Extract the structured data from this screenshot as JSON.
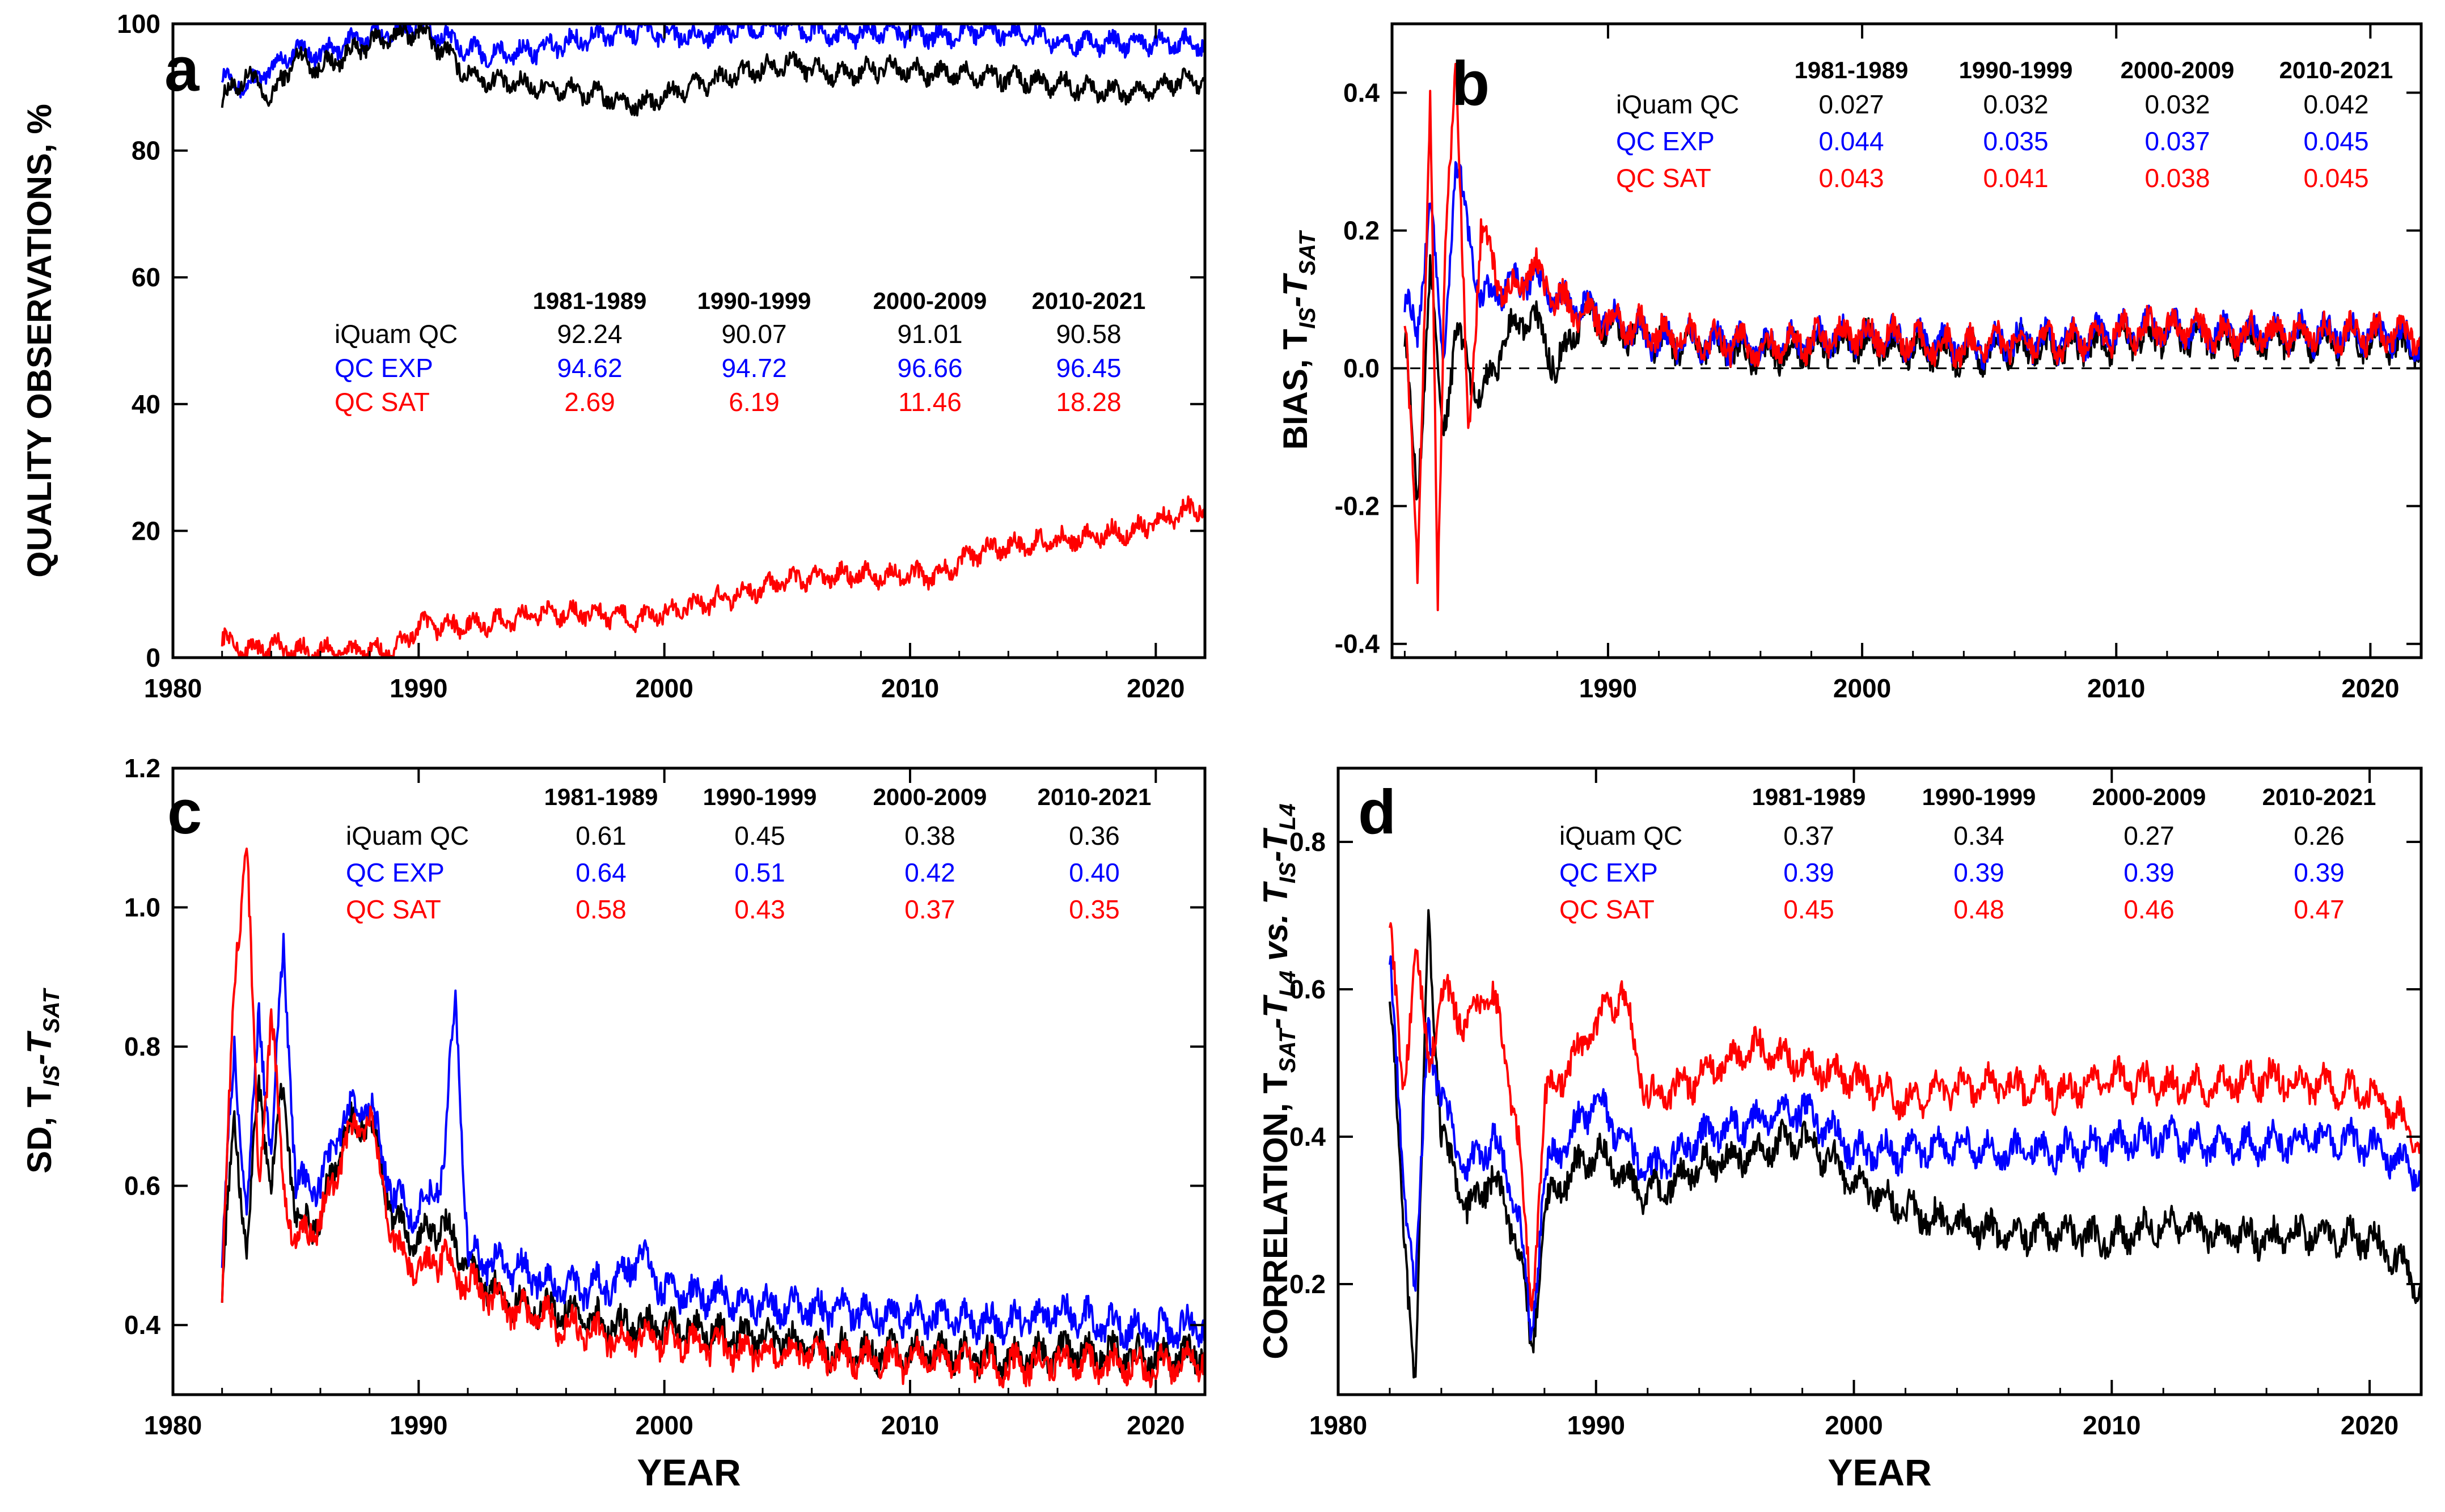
{
  "colors": {
    "iquam": "#000000",
    "exp": "#0000ff",
    "sat": "#ff0000"
  },
  "chart_data": [
    {
      "type": "line",
      "panel_label": "a",
      "ylabel": "QUALITY OBSERVATIONS, %",
      "xlabel": "",
      "xlim": [
        1980,
        2022
      ],
      "ylim": [
        0,
        100
      ],
      "x_ticks": [
        "1980",
        "1990",
        "2000",
        "2010",
        "2020"
      ],
      "y_ticks": [
        "0",
        "20",
        "40",
        "60",
        "80",
        "100"
      ],
      "table": {
        "headers": [
          "1981-1989",
          "1990-1999",
          "2000-2009",
          "2010-2021"
        ],
        "rows": [
          {
            "label": "iQuam QC",
            "values": [
              "92.24",
              "90.07",
              "91.01",
              "90.58"
            ]
          },
          {
            "label": "QC EXP",
            "values": [
              "94.62",
              "94.72",
              "96.66",
              "96.45"
            ]
          },
          {
            "label": "QC SAT",
            "values": [
              "2.69",
              "6.19",
              "11.46",
              "18.28"
            ]
          }
        ]
      },
      "series": [
        {
          "name": "iQuam QC",
          "x": [
            1982,
            1983,
            1984,
            1985,
            1986,
            1987,
            1988,
            1989,
            1990,
            1991,
            1992,
            1993,
            1995,
            1997,
            1999,
            2001,
            2003,
            2005,
            2007,
            2009,
            2011,
            2013,
            2015,
            2017,
            2019,
            2021,
            2022
          ],
          "y": [
            88,
            92,
            88,
            95,
            93,
            95,
            97,
            98,
            99,
            96,
            92,
            91,
            90,
            89,
            87,
            90,
            92,
            94,
            92,
            93,
            92,
            92,
            91,
            90,
            89,
            91,
            91
          ]
        },
        {
          "name": "QC EXP",
          "x": [
            1982,
            1983,
            1984,
            1985,
            1986,
            1987,
            1988,
            1989,
            1990,
            1991,
            1992,
            1993,
            1995,
            1997,
            1999,
            2001,
            2003,
            2005,
            2007,
            2009,
            2011,
            2013,
            2015,
            2017,
            2019,
            2021,
            2022
          ],
          "y": [
            92,
            90,
            93,
            96,
            95,
            97,
            98,
            99,
            100,
            98,
            96,
            95,
            96,
            98,
            99,
            98,
            99,
            100,
            98,
            99,
            98,
            99,
            98,
            97,
            97,
            97,
            97
          ]
        },
        {
          "name": "QC SAT",
          "x": [
            1982,
            1983,
            1984,
            1985,
            1986,
            1987,
            1988,
            1989,
            1990,
            1992,
            1994,
            1995,
            1997,
            1999,
            2001,
            2003,
            2005,
            2007,
            2009,
            2011,
            2013,
            2015,
            2017,
            2019,
            2021,
            2022
          ],
          "y": [
            3,
            1,
            2,
            1,
            1,
            1,
            1,
            1,
            5,
            5,
            6,
            7,
            7,
            6,
            8,
            10,
            12,
            13,
            13,
            13,
            17,
            18,
            19,
            20,
            23,
            24
          ]
        }
      ]
    },
    {
      "type": "line",
      "panel_label": "b",
      "ylabel": "BIAS, T_IS-T_SAT",
      "ylabel_parts": [
        "BIAS, T",
        "IS",
        "-T",
        "SAT"
      ],
      "xlabel": "",
      "xlim": [
        1981.5,
        2022
      ],
      "ylim": [
        -0.42,
        0.5
      ],
      "x_ticks": [
        "1990",
        "2000",
        "2010",
        "2020"
      ],
      "y_ticks": [
        "-0.4",
        "-0.2",
        "0.0",
        "0.2",
        "0.4"
      ],
      "table": {
        "headers": [
          "1981-1989",
          "1990-1999",
          "2000-2009",
          "2010-2021"
        ],
        "rows": [
          {
            "label": "iQuam QC",
            "values": [
              "0.027",
              "0.032",
              "0.032",
              "0.042"
            ]
          },
          {
            "label": "QC EXP",
            "values": [
              "0.044",
              "0.035",
              "0.037",
              "0.045"
            ]
          },
          {
            "label": "QC SAT",
            "values": [
              "0.043",
              "0.041",
              "0.038",
              "0.045"
            ]
          }
        ]
      },
      "series": [
        {
          "name": "iQuam QC",
          "x": [
            1982,
            1982.5,
            1983,
            1983.5,
            1984,
            1985,
            1986,
            1987,
            1988,
            1989,
            1990,
            1992,
            1994,
            1996,
            1998,
            2000,
            2002,
            2004,
            2006,
            2008,
            2010,
            2012,
            2014,
            2016,
            2018,
            2020,
            2022
          ],
          "y": [
            0.05,
            -0.2,
            0.15,
            -0.1,
            0.05,
            -0.05,
            0.05,
            0.08,
            0.0,
            0.08,
            0.06,
            0.04,
            0.03,
            0.02,
            0.03,
            0.04,
            0.03,
            0.02,
            0.03,
            0.03,
            0.04,
            0.05,
            0.04,
            0.04,
            0.04,
            0.04,
            0.03
          ]
        },
        {
          "name": "QC EXP",
          "x": [
            1982,
            1982.5,
            1983,
            1983.5,
            1984,
            1985,
            1986,
            1987,
            1988,
            1989,
            1990,
            1992,
            1994,
            1996,
            1998,
            2000,
            2002,
            2004,
            2006,
            2008,
            2010,
            2012,
            2014,
            2016,
            2018,
            2020,
            2022
          ],
          "y": [
            0.1,
            0.05,
            0.25,
            0.0,
            0.3,
            0.1,
            0.12,
            0.13,
            0.1,
            0.09,
            0.07,
            0.04,
            0.04,
            0.03,
            0.04,
            0.05,
            0.04,
            0.03,
            0.04,
            0.04,
            0.05,
            0.06,
            0.05,
            0.05,
            0.05,
            0.05,
            0.04
          ]
        },
        {
          "name": "QC SAT",
          "x": [
            1982,
            1982.5,
            1983,
            1983.3,
            1983.6,
            1984,
            1984.5,
            1985,
            1986,
            1987,
            1988,
            1989,
            1990,
            1992,
            1994,
            1996,
            1998,
            2000,
            2002,
            2004,
            2006,
            2008,
            2010,
            2012,
            2014,
            2016,
            2018,
            2020,
            2022
          ],
          "y": [
            0.08,
            -0.3,
            0.4,
            -0.35,
            0.2,
            0.45,
            -0.1,
            0.2,
            0.1,
            0.15,
            0.1,
            0.08,
            0.07,
            0.05,
            0.04,
            0.03,
            0.04,
            0.05,
            0.04,
            0.03,
            0.04,
            0.04,
            0.05,
            0.06,
            0.05,
            0.05,
            0.05,
            0.05,
            0.05
          ]
        }
      ]
    },
    {
      "type": "line",
      "panel_label": "c",
      "ylabel": "SD, T_IS-T_SAT",
      "ylabel_parts": [
        "SD, T",
        "IS",
        "-T",
        "SAT"
      ],
      "xlabel": "YEAR",
      "xlim": [
        1980,
        2022
      ],
      "ylim": [
        0.3,
        1.2
      ],
      "x_ticks": [
        "1980",
        "1990",
        "2000",
        "2010",
        "2020"
      ],
      "y_ticks": [
        "0.4",
        "0.6",
        "0.8",
        "1.0",
        "1.2"
      ],
      "table": {
        "headers": [
          "1981-1989",
          "1990-1999",
          "2000-2009",
          "2010-2021"
        ],
        "rows": [
          {
            "label": "iQuam QC",
            "values": [
              "0.61",
              "0.45",
              "0.38",
              "0.36"
            ]
          },
          {
            "label": "QC EXP",
            "values": [
              "0.64",
              "0.51",
              "0.42",
              "0.40"
            ]
          },
          {
            "label": "QC SAT",
            "values": [
              "0.58",
              "0.43",
              "0.37",
              "0.35"
            ]
          }
        ]
      },
      "series": [
        {
          "name": "iQuam QC",
          "x": [
            1982,
            1982.5,
            1983,
            1983.5,
            1984,
            1984.5,
            1985,
            1986,
            1987,
            1988,
            1989,
            1990,
            1991,
            1992,
            1994,
            1996,
            1998,
            2000,
            2002,
            2004,
            2006,
            2008,
            2010,
            2012,
            2014,
            2016,
            2018,
            2020,
            2022
          ],
          "y": [
            0.45,
            0.7,
            0.5,
            0.75,
            0.6,
            0.75,
            0.55,
            0.55,
            0.68,
            0.7,
            0.55,
            0.52,
            0.55,
            0.48,
            0.43,
            0.42,
            0.4,
            0.4,
            0.39,
            0.38,
            0.37,
            0.36,
            0.36,
            0.36,
            0.35,
            0.36,
            0.36,
            0.35,
            0.36
          ]
        },
        {
          "name": "QC EXP",
          "x": [
            1982,
            1982.5,
            1983,
            1983.5,
            1984,
            1984.5,
            1985,
            1986,
            1987,
            1988,
            1989,
            1990,
            1991,
            1991.5,
            1992,
            1994,
            1996,
            1998,
            1999,
            2000,
            2002,
            2004,
            2006,
            2008,
            2010,
            2012,
            2014,
            2016,
            2018,
            2020,
            2022
          ],
          "y": [
            0.5,
            0.8,
            0.55,
            0.85,
            0.65,
            0.95,
            0.6,
            0.6,
            0.7,
            0.72,
            0.58,
            0.56,
            0.62,
            0.88,
            0.5,
            0.48,
            0.45,
            0.46,
            0.5,
            0.45,
            0.44,
            0.43,
            0.42,
            0.42,
            0.41,
            0.41,
            0.4,
            0.42,
            0.4,
            0.39,
            0.4
          ]
        },
        {
          "name": "QC SAT",
          "x": [
            1982,
            1982.5,
            1983,
            1983.5,
            1984,
            1984.5,
            1985,
            1986,
            1987,
            1988,
            1989,
            1990,
            1991,
            1992,
            1994,
            1996,
            1998,
            2000,
            2002,
            2004,
            2006,
            2008,
            2010,
            2012,
            2014,
            2016,
            2018,
            2020,
            2022
          ],
          "y": [
            0.45,
            0.9,
            1.1,
            0.6,
            0.85,
            0.6,
            0.52,
            0.55,
            0.66,
            0.7,
            0.52,
            0.48,
            0.5,
            0.46,
            0.42,
            0.4,
            0.38,
            0.38,
            0.37,
            0.36,
            0.36,
            0.35,
            0.35,
            0.35,
            0.34,
            0.35,
            0.34,
            0.34,
            0.35
          ]
        }
      ]
    },
    {
      "type": "line",
      "panel_label": "d",
      "ylabel": "CORRELATION, T_SAT-T_L4 vs. T_IS-T_L4",
      "ylabel_parts": [
        "CORRELATION, T",
        "SAT",
        "-T",
        "L4",
        " vs. T",
        "IS",
        "-T",
        "L4"
      ],
      "xlabel": "YEAR",
      "xlim": [
        1980,
        2022
      ],
      "ylim": [
        0.05,
        0.9
      ],
      "x_ticks": [
        "1980",
        "1990",
        "2000",
        "2010",
        "2020"
      ],
      "y_ticks": [
        "0.2",
        "0.4",
        "0.6",
        "0.8"
      ],
      "table": {
        "headers": [
          "1981-1989",
          "1990-1999",
          "2000-2009",
          "2010-2021"
        ],
        "rows": [
          {
            "label": "iQuam QC",
            "values": [
              "0.37",
              "0.34",
              "0.27",
              "0.26"
            ]
          },
          {
            "label": "QC EXP",
            "values": [
              "0.39",
              "0.39",
              "0.39",
              "0.39"
            ]
          },
          {
            "label": "QC SAT",
            "values": [
              "0.45",
              "0.48",
              "0.46",
              "0.47"
            ]
          }
        ]
      },
      "series": [
        {
          "name": "iQuam QC",
          "x": [
            1982,
            1982.5,
            1983,
            1983.5,
            1984,
            1985,
            1986,
            1987,
            1987.5,
            1988,
            1989,
            1990,
            1992,
            1994,
            1996,
            1998,
            2000,
            2002,
            2004,
            2006,
            2008,
            2010,
            2012,
            2014,
            2016,
            2018,
            2020,
            2022
          ],
          "y": [
            0.6,
            0.3,
            0.06,
            0.7,
            0.4,
            0.3,
            0.35,
            0.25,
            0.1,
            0.3,
            0.35,
            0.38,
            0.32,
            0.36,
            0.38,
            0.4,
            0.34,
            0.3,
            0.28,
            0.27,
            0.27,
            0.26,
            0.28,
            0.27,
            0.26,
            0.27,
            0.26,
            0.2
          ]
        },
        {
          "name": "QC EXP",
          "x": [
            1982,
            1982.5,
            1983,
            1983.5,
            1984,
            1985,
            1986,
            1987,
            1987.5,
            1988,
            1989,
            1990,
            1992,
            1994,
            1996,
            1998,
            2000,
            2002,
            2004,
            2006,
            2008,
            2010,
            2012,
            2014,
            2016,
            2018,
            2020,
            2022
          ],
          "y": [
            0.65,
            0.35,
            0.2,
            0.55,
            0.45,
            0.35,
            0.4,
            0.3,
            0.12,
            0.35,
            0.4,
            0.45,
            0.35,
            0.4,
            0.42,
            0.44,
            0.38,
            0.38,
            0.39,
            0.38,
            0.38,
            0.39,
            0.4,
            0.39,
            0.39,
            0.4,
            0.39,
            0.35
          ]
        },
        {
          "name": "QC SAT",
          "x": [
            1982,
            1982.5,
            1983,
            1983.5,
            1984,
            1985,
            1986,
            1987,
            1987.5,
            1988,
            1989,
            1990,
            1991,
            1992,
            1994,
            1996,
            1998,
            2000,
            2002,
            2004,
            2006,
            2008,
            2010,
            2012,
            2014,
            2016,
            2018,
            2020,
            2022
          ],
          "y": [
            0.7,
            0.45,
            0.65,
            0.5,
            0.6,
            0.55,
            0.6,
            0.4,
            0.15,
            0.45,
            0.5,
            0.55,
            0.6,
            0.45,
            0.48,
            0.52,
            0.5,
            0.48,
            0.45,
            0.47,
            0.47,
            0.46,
            0.48,
            0.47,
            0.47,
            0.48,
            0.47,
            0.46,
            0.4
          ]
        }
      ]
    }
  ]
}
